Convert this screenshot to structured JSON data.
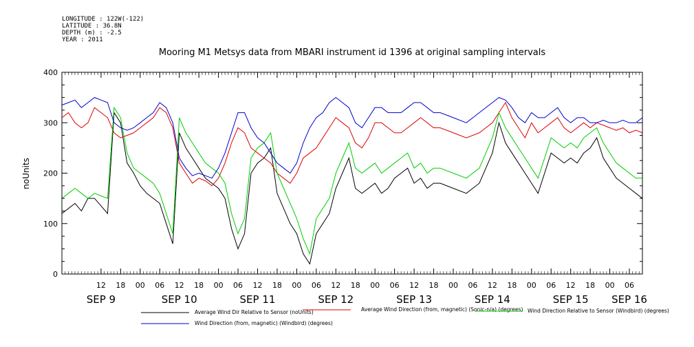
{
  "header": {
    "longitude": "LONGITUDE : 122W(-122)",
    "latitude": "LATITUDE : 36.8N",
    "depth": "DEPTH (m) : -2.5",
    "year": "YEAR : 2011"
  },
  "chart_data": {
    "type": "line",
    "title": "Mooring M1 Metsys data from MBARI instrument id 1396 at original sampling intervals",
    "ylabel": "noUnits",
    "ylim": [
      0,
      400
    ],
    "yticks": [
      0,
      100,
      200,
      300,
      400
    ],
    "xlim_hours": [
      0,
      178
    ],
    "hour_ticks": [
      {
        "h": 12,
        "label": "12"
      },
      {
        "h": 18,
        "label": "18"
      },
      {
        "h": 24,
        "label": "00"
      },
      {
        "h": 30,
        "label": "06"
      },
      {
        "h": 36,
        "label": "12"
      },
      {
        "h": 42,
        "label": "18"
      },
      {
        "h": 48,
        "label": "00"
      },
      {
        "h": 54,
        "label": "06"
      },
      {
        "h": 60,
        "label": "12"
      },
      {
        "h": 66,
        "label": "18"
      },
      {
        "h": 72,
        "label": "00"
      },
      {
        "h": 78,
        "label": "06"
      },
      {
        "h": 84,
        "label": "12"
      },
      {
        "h": 90,
        "label": "18"
      },
      {
        "h": 96,
        "label": "00"
      },
      {
        "h": 102,
        "label": "06"
      },
      {
        "h": 108,
        "label": "12"
      },
      {
        "h": 114,
        "label": "18"
      },
      {
        "h": 120,
        "label": "00"
      },
      {
        "h": 126,
        "label": "06"
      },
      {
        "h": 132,
        "label": "12"
      },
      {
        "h": 138,
        "label": "18"
      },
      {
        "h": 144,
        "label": "00"
      },
      {
        "h": 150,
        "label": "06"
      },
      {
        "h": 156,
        "label": "12"
      },
      {
        "h": 162,
        "label": "18"
      },
      {
        "h": 168,
        "label": "00"
      },
      {
        "h": 174,
        "label": "06"
      }
    ],
    "day_labels": [
      {
        "h": 12,
        "label": "SEP 9"
      },
      {
        "h": 36,
        "label": "SEP 10"
      },
      {
        "h": 60,
        "label": "SEP 11"
      },
      {
        "h": 84,
        "label": "SEP 12"
      },
      {
        "h": 108,
        "label": "SEP 13"
      },
      {
        "h": 132,
        "label": "SEP 14"
      },
      {
        "h": 156,
        "label": "SEP 15"
      },
      {
        "h": 174,
        "label": "SEP 16"
      }
    ],
    "series": [
      {
        "name": "Average Wind Dir Relative to Sensor (noUnits)",
        "color": "#000000",
        "x": [
          0,
          2,
          4,
          6,
          8,
          10,
          12,
          14,
          16,
          18,
          20,
          22,
          24,
          26,
          28,
          30,
          32,
          34,
          36,
          38,
          40,
          42,
          44,
          46,
          48,
          50,
          52,
          54,
          56,
          58,
          60,
          62,
          64,
          66,
          68,
          70,
          72,
          74,
          76,
          78,
          80,
          82,
          84,
          86,
          88,
          90,
          92,
          94,
          96,
          98,
          100,
          102,
          104,
          106,
          108,
          110,
          112,
          114,
          116,
          120,
          124,
          128,
          132,
          134,
          136,
          138,
          140,
          142,
          144,
          146,
          148,
          150,
          152,
          154,
          156,
          158,
          160,
          162,
          164,
          166,
          168,
          170,
          172,
          174,
          176,
          178
        ],
        "y": [
          120,
          130,
          140,
          125,
          150,
          150,
          135,
          120,
          320,
          300,
          220,
          200,
          175,
          160,
          150,
          140,
          100,
          60,
          280,
          250,
          230,
          210,
          190,
          180,
          170,
          150,
          90,
          50,
          80,
          200,
          220,
          230,
          250,
          160,
          130,
          100,
          80,
          40,
          20,
          80,
          100,
          120,
          170,
          200,
          230,
          170,
          160,
          170,
          180,
          160,
          170,
          190,
          200,
          210,
          180,
          190,
          170,
          180,
          180,
          170,
          160,
          180,
          240,
          300,
          260,
          240,
          220,
          200,
          180,
          160,
          200,
          240,
          230,
          220,
          230,
          220,
          240,
          250,
          270,
          230,
          210,
          190,
          180,
          170,
          160,
          150
        ],
        "spikes": []
      },
      {
        "name": "Average Wind Direction (from, magnetic) (Sonic-n/a) (degrees)",
        "color": "#dd0000",
        "x": [
          0,
          2,
          4,
          6,
          8,
          10,
          12,
          14,
          16,
          18,
          20,
          22,
          24,
          26,
          28,
          30,
          32,
          34,
          36,
          38,
          40,
          42,
          44,
          46,
          48,
          50,
          52,
          54,
          56,
          58,
          60,
          62,
          64,
          66,
          68,
          70,
          72,
          74,
          76,
          78,
          80,
          82,
          84,
          86,
          88,
          90,
          92,
          94,
          96,
          98,
          100,
          102,
          104,
          106,
          108,
          110,
          112,
          114,
          116,
          120,
          124,
          128,
          132,
          134,
          136,
          138,
          140,
          142,
          144,
          146,
          148,
          150,
          152,
          154,
          156,
          158,
          160,
          162,
          164,
          166,
          168,
          170,
          172,
          174,
          176,
          178
        ],
        "y": [
          310,
          320,
          300,
          290,
          300,
          330,
          320,
          310,
          280,
          270,
          275,
          280,
          290,
          300,
          310,
          330,
          320,
          290,
          220,
          200,
          180,
          190,
          185,
          175,
          190,
          220,
          260,
          290,
          280,
          250,
          240,
          230,
          220,
          200,
          190,
          180,
          200,
          230,
          240,
          250,
          270,
          290,
          310,
          300,
          290,
          260,
          250,
          270,
          300,
          300,
          290,
          280,
          280,
          290,
          300,
          310,
          300,
          290,
          290,
          280,
          270,
          280,
          300,
          320,
          340,
          310,
          290,
          270,
          300,
          280,
          290,
          300,
          310,
          290,
          280,
          290,
          300,
          290,
          300,
          295,
          290,
          285,
          290,
          280,
          285,
          280
        ],
        "spikes": []
      },
      {
        "name": "Wind Direction Relative to Sensor (Windbird) (degrees)",
        "color": "#00cc00",
        "x": [
          0,
          2,
          4,
          6,
          8,
          10,
          12,
          14,
          16,
          18,
          20,
          22,
          24,
          26,
          28,
          30,
          32,
          34,
          36,
          38,
          40,
          42,
          44,
          46,
          48,
          50,
          52,
          54,
          56,
          58,
          60,
          62,
          64,
          66,
          68,
          70,
          72,
          74,
          76,
          78,
          80,
          82,
          84,
          86,
          88,
          90,
          92,
          94,
          96,
          98,
          100,
          102,
          104,
          106,
          108,
          110,
          112,
          114,
          116,
          120,
          124,
          128,
          132,
          134,
          136,
          138,
          140,
          142,
          144,
          146,
          148,
          150,
          152,
          154,
          156,
          158,
          160,
          162,
          164,
          166,
          168,
          170,
          172,
          174,
          176,
          178
        ],
        "y": [
          150,
          160,
          170,
          160,
          150,
          160,
          155,
          150,
          330,
          310,
          240,
          210,
          200,
          190,
          180,
          160,
          120,
          80,
          310,
          280,
          260,
          240,
          220,
          210,
          200,
          180,
          120,
          80,
          110,
          230,
          250,
          260,
          280,
          200,
          170,
          140,
          110,
          70,
          40,
          110,
          130,
          150,
          200,
          230,
          260,
          210,
          200,
          210,
          220,
          200,
          210,
          220,
          230,
          240,
          210,
          220,
          200,
          210,
          210,
          200,
          190,
          210,
          270,
          320,
          290,
          270,
          250,
          230,
          210,
          190,
          230,
          270,
          260,
          250,
          260,
          250,
          270,
          280,
          290,
          260,
          240,
          220,
          210,
          200,
          190,
          190
        ],
        "spikes": []
      },
      {
        "name": "Wind Direction (from, magnetic) (Windbird) (degrees)",
        "color": "#0000cc",
        "x": [
          0,
          2,
          4,
          6,
          8,
          10,
          12,
          14,
          16,
          18,
          20,
          22,
          24,
          26,
          28,
          30,
          32,
          34,
          36,
          38,
          40,
          42,
          44,
          46,
          48,
          50,
          52,
          54,
          56,
          58,
          60,
          62,
          64,
          66,
          68,
          70,
          72,
          74,
          76,
          78,
          80,
          82,
          84,
          86,
          88,
          90,
          92,
          94,
          96,
          98,
          100,
          102,
          104,
          106,
          108,
          110,
          112,
          114,
          116,
          120,
          124,
          128,
          132,
          134,
          136,
          138,
          140,
          142,
          144,
          146,
          148,
          150,
          152,
          154,
          156,
          158,
          160,
          162,
          164,
          166,
          168,
          170,
          172,
          174,
          176,
          178
        ],
        "y": [
          335,
          340,
          345,
          330,
          340,
          350,
          345,
          340,
          300,
          290,
          285,
          290,
          300,
          310,
          320,
          340,
          330,
          300,
          230,
          210,
          195,
          200,
          195,
          190,
          210,
          240,
          280,
          320,
          320,
          290,
          270,
          260,
          240,
          220,
          210,
          200,
          220,
          260,
          290,
          310,
          320,
          340,
          350,
          340,
          330,
          300,
          290,
          310,
          330,
          330,
          320,
          320,
          320,
          330,
          340,
          340,
          330,
          320,
          320,
          310,
          300,
          320,
          340,
          350,
          345,
          330,
          310,
          300,
          320,
          310,
          310,
          320,
          330,
          310,
          300,
          310,
          310,
          300,
          300,
          305,
          300,
          300,
          305,
          300,
          300,
          310
        ],
        "spikes": []
      }
    ]
  }
}
